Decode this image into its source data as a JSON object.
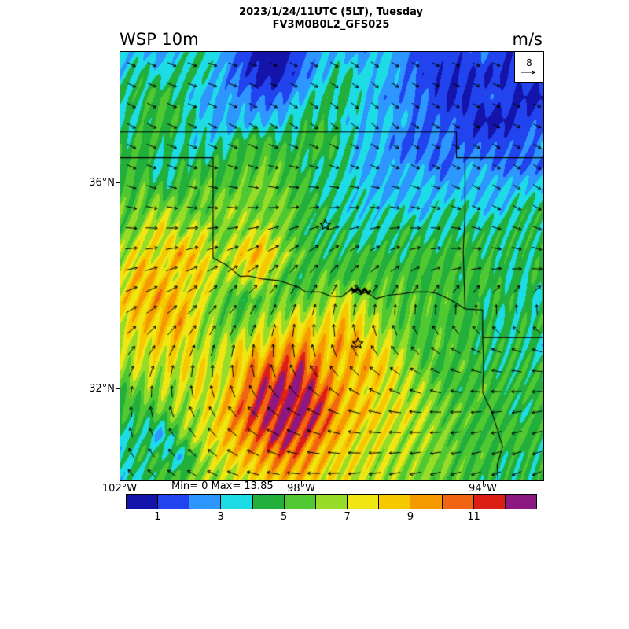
{
  "header": {
    "title_line1": "2023/1/24/11UTC (5LT), Tuesday",
    "title_line2": "FV3M0B0L2_GFS025"
  },
  "labels": {
    "variable": "WSP 10m",
    "units": "m/s",
    "minmax": "Min= 0 Max= 13.85",
    "ref_value": "8"
  },
  "axes": {
    "lat_ticks": [
      {
        "label": "36°N",
        "lat": 36
      },
      {
        "label": "32°N",
        "lat": 32
      }
    ],
    "lon_ticks": [
      {
        "label": "102°W",
        "lon": -102
      },
      {
        "label": "98°W",
        "lon": -98
      },
      {
        "label": "94°W",
        "lon": -94
      }
    ]
  },
  "chart_data": {
    "type": "heatmap",
    "title": "WSP 10m",
    "subtitle": "2023/1/24/11UTC (5LT), Tuesday FV3M0B0L2_GFS025",
    "units": "m/s",
    "min": 0,
    "max": 13.85,
    "grid": {
      "ncols": 22,
      "nrows": 20,
      "lon_range": [
        -102.05,
        -92.7
      ],
      "lat_range": [
        30.25,
        38.55
      ],
      "values": [
        [
          3,
          3,
          2,
          3,
          4,
          3,
          2,
          1,
          1,
          2,
          3,
          3,
          2,
          3,
          2,
          1,
          1,
          1,
          2,
          1,
          1,
          2
        ],
        [
          3,
          4,
          3,
          4,
          4,
          3,
          2,
          1,
          1,
          2,
          3,
          4,
          3,
          3,
          2,
          1,
          1,
          1,
          1,
          1,
          2,
          2
        ],
        [
          4,
          4,
          5,
          4,
          3,
          3,
          3,
          2,
          2,
          3,
          4,
          4,
          3,
          2,
          2,
          2,
          1,
          1,
          2,
          2,
          1,
          1
        ],
        [
          3,
          4,
          5,
          5,
          4,
          3,
          3,
          3,
          3,
          4,
          4,
          3,
          3,
          3,
          3,
          2,
          2,
          2,
          1,
          1,
          2,
          2
        ],
        [
          4,
          5,
          5,
          4,
          4,
          4,
          5,
          5,
          4,
          4,
          5,
          4,
          3,
          3,
          2,
          2,
          3,
          2,
          2,
          2,
          2,
          3
        ],
        [
          5,
          5,
          4,
          5,
          5,
          5,
          5,
          5,
          5,
          4,
          4,
          4,
          3,
          3,
          3,
          3,
          2,
          3,
          3,
          2,
          2,
          2
        ],
        [
          5,
          6,
          5,
          5,
          6,
          5,
          5,
          6,
          5,
          5,
          4,
          4,
          4,
          3,
          3,
          4,
          3,
          3,
          3,
          3,
          3,
          3
        ],
        [
          6,
          6,
          7,
          6,
          5,
          6,
          6,
          5,
          6,
          5,
          5,
          4,
          4,
          4,
          4,
          3,
          4,
          4,
          3,
          3,
          4,
          4
        ],
        [
          6,
          7,
          8,
          6,
          7,
          5,
          6,
          7,
          6,
          5,
          5,
          5,
          4,
          4,
          5,
          4,
          4,
          4,
          4,
          4,
          4,
          4
        ],
        [
          7,
          8,
          7,
          9,
          7,
          6,
          8,
          9,
          7,
          6,
          5,
          5,
          5,
          5,
          4,
          5,
          4,
          5,
          4,
          4,
          4,
          4
        ],
        [
          7,
          9,
          8,
          7,
          8,
          6,
          7,
          8,
          6,
          5,
          6,
          5,
          5,
          5,
          5,
          4,
          5,
          4,
          5,
          4,
          4,
          5
        ],
        [
          8,
          8,
          9,
          8,
          7,
          6,
          5,
          6,
          6,
          6,
          6,
          7,
          6,
          5,
          5,
          5,
          5,
          5,
          4,
          5,
          4,
          4
        ],
        [
          7,
          8,
          8,
          9,
          7,
          6,
          6,
          7,
          7,
          8,
          7,
          8,
          7,
          6,
          5,
          5,
          5,
          5,
          5,
          4,
          5,
          5
        ],
        [
          6,
          7,
          8,
          8,
          7,
          7,
          8,
          8,
          9,
          9,
          8,
          9,
          8,
          7,
          6,
          5,
          6,
          5,
          5,
          5,
          5,
          4
        ],
        [
          6,
          7,
          7,
          8,
          8,
          7,
          9,
          10,
          10,
          11,
          9,
          8,
          9,
          8,
          7,
          6,
          5,
          6,
          5,
          5,
          5,
          5
        ],
        [
          5,
          6,
          7,
          7,
          8,
          8,
          9,
          11,
          12,
          12,
          10,
          9,
          8,
          8,
          7,
          7,
          6,
          5,
          6,
          5,
          5,
          5
        ],
        [
          5,
          5,
          6,
          7,
          7,
          8,
          10,
          11,
          12,
          12,
          11,
          9,
          9,
          8,
          8,
          7,
          6,
          6,
          5,
          5,
          4,
          5
        ],
        [
          4,
          5,
          3,
          6,
          7,
          8,
          9,
          10,
          12,
          11,
          10,
          9,
          8,
          8,
          7,
          7,
          6,
          5,
          5,
          5,
          5,
          4
        ],
        [
          4,
          5,
          5,
          3,
          6,
          7,
          8,
          9,
          10,
          10,
          9,
          8,
          8,
          7,
          7,
          6,
          6,
          5,
          5,
          4,
          4,
          4
        ],
        [
          4,
          4,
          5,
          5,
          6,
          6,
          7,
          8,
          9,
          9,
          8,
          8,
          7,
          7,
          6,
          6,
          5,
          5,
          4,
          4,
          4,
          4
        ]
      ]
    },
    "colorbar": {
      "vmin": 0,
      "vmax": 13,
      "colors": [
        "#1414aa",
        "#2244ee",
        "#2e96ff",
        "#1edce6",
        "#23af3c",
        "#50c832",
        "#96dc28",
        "#f0e614",
        "#f5c800",
        "#f59a00",
        "#f06414",
        "#dc1e14",
        "#8c1982"
      ],
      "ticks": [
        1,
        3,
        5,
        7,
        9,
        11
      ]
    },
    "arrows": {
      "reference": 8,
      "grid_cols": 8,
      "grid_rows": 7,
      "angles_deg_ccw_from_east": [
        [
          -25,
          -20,
          -15,
          -25,
          -35,
          -25,
          -20,
          -15
        ],
        [
          -30,
          -25,
          -30,
          -35,
          -40,
          -35,
          -30,
          -25
        ],
        [
          -20,
          -15,
          -10,
          0,
          -10,
          -20,
          -30,
          -35
        ],
        [
          10,
          20,
          30,
          45,
          40,
          20,
          0,
          -10
        ],
        [
          40,
          55,
          70,
          90,
          110,
          130,
          150,
          160
        ],
        [
          90,
          110,
          130,
          150,
          165,
          175,
          185,
          190
        ],
        [
          130,
          150,
          165,
          180,
          190,
          195,
          200,
          205
        ]
      ]
    },
    "borders": [
      [
        [
          -102.05,
          37
        ],
        [
          -94.62,
          37
        ]
      ],
      [
        [
          -102.05,
          36.5
        ],
        [
          -100,
          36.5
        ]
      ],
      [
        [
          -100,
          36.5
        ],
        [
          -100,
          34.56
        ]
      ],
      [
        [
          -100,
          34.56
        ],
        [
          -99.7,
          34.42
        ],
        [
          -99.4,
          34.2
        ],
        [
          -99.2,
          34.21
        ],
        [
          -98.9,
          34.15
        ],
        [
          -98.55,
          34.12
        ],
        [
          -98.4,
          34.08
        ],
        [
          -98.1,
          33.99
        ],
        [
          -97.95,
          33.9
        ],
        [
          -97.65,
          33.9
        ],
        [
          -97.4,
          33.82
        ],
        [
          -97.15,
          33.81
        ],
        [
          -96.95,
          33.95
        ],
        [
          -96.75,
          33.85
        ],
        [
          -96.6,
          33.9
        ],
        [
          -96.4,
          33.77
        ],
        [
          -96.1,
          33.84
        ],
        [
          -95.85,
          33.86
        ],
        [
          -95.55,
          33.9
        ],
        [
          -95.25,
          33.9
        ],
        [
          -95.05,
          33.87
        ],
        [
          -94.75,
          33.75
        ],
        [
          -94.43,
          33.57
        ]
      ],
      [
        [
          -94.62,
          37
        ],
        [
          -94.62,
          36.5
        ],
        [
          -92.7,
          36.5
        ]
      ],
      [
        [
          -94.43,
          36.5
        ],
        [
          -94.43,
          35.4
        ],
        [
          -94.47,
          34.7
        ],
        [
          -94.43,
          33.57
        ]
      ],
      [
        [
          -94.43,
          33.57
        ],
        [
          -94.04,
          33.55
        ],
        [
          -94.04,
          33.0
        ],
        [
          -94.02,
          32.5
        ],
        [
          -94.04,
          31.95
        ],
        [
          -93.85,
          31.6
        ],
        [
          -93.7,
          31.2
        ],
        [
          -93.6,
          30.9
        ],
        [
          -93.72,
          30.55
        ],
        [
          -93.7,
          30.25
        ]
      ],
      [
        [
          -94.04,
          33.02
        ],
        [
          -92.7,
          33.02
        ]
      ]
    ],
    "lake_path": [
      [
        -96.95,
        33.98
      ],
      [
        -96.88,
        33.9
      ],
      [
        -96.8,
        33.97
      ],
      [
        -96.72,
        33.88
      ],
      [
        -96.65,
        33.96
      ],
      [
        -96.57,
        33.87
      ],
      [
        -96.52,
        33.93
      ]
    ],
    "stars": [
      {
        "lon": -97.52,
        "lat": 35.2
      },
      {
        "lon": -96.8,
        "lat": 32.9
      }
    ]
  }
}
